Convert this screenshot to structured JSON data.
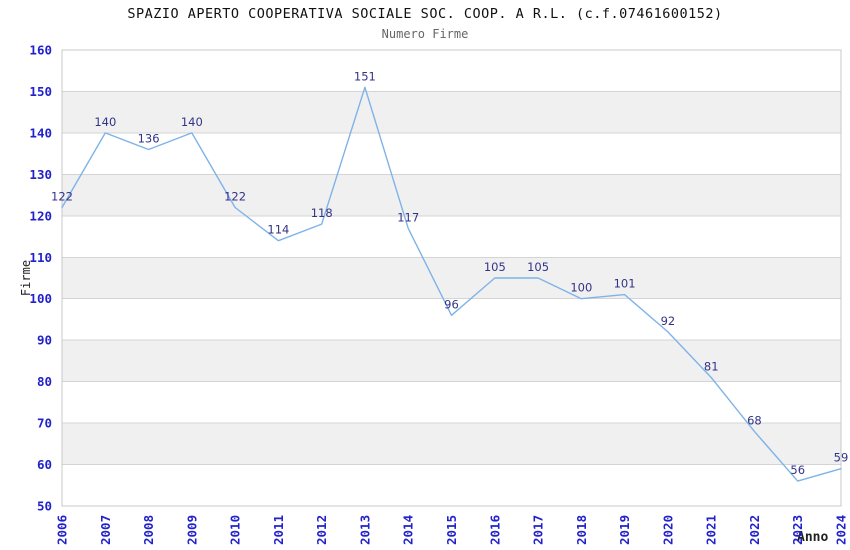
{
  "chart_data": {
    "type": "line",
    "title": "SPAZIO APERTO COOPERATIVA SOCIALE SOC. COOP. A R.L. (c.f.07461600152)",
    "subtitle": "Numero Firme",
    "xlabel": "Anno",
    "ylabel": "Firme",
    "x": [
      "2006",
      "2007",
      "2008",
      "2009",
      "2010",
      "2011",
      "2012",
      "2013",
      "2014",
      "2015",
      "2016",
      "2017",
      "2018",
      "2019",
      "2020",
      "2021",
      "2022",
      "2023",
      "2024"
    ],
    "series": [
      {
        "name": "Numero Firme",
        "values": [
          122,
          140,
          136,
          140,
          122,
          114,
          118,
          151,
          117,
          96,
          105,
          105,
          100,
          101,
          92,
          81,
          68,
          56,
          59
        ]
      }
    ],
    "ylim": [
      50,
      160
    ],
    "ytick_step": 10,
    "yticks": [
      50,
      60,
      70,
      80,
      90,
      100,
      110,
      120,
      130,
      140,
      150,
      160
    ],
    "grid": true,
    "alternating_bands": true,
    "legend_position": "none",
    "data_labels_shown": true
  },
  "colors": {
    "line": "#7FB3E8",
    "tick_label": "#2222CC",
    "data_label": "#333388",
    "band": "#F0F0F0",
    "grid": "#D4D4D4",
    "plot_border": "#C8C8C8",
    "title": "#111111",
    "subtitle": "#666666",
    "axis_title": "#222222"
  }
}
